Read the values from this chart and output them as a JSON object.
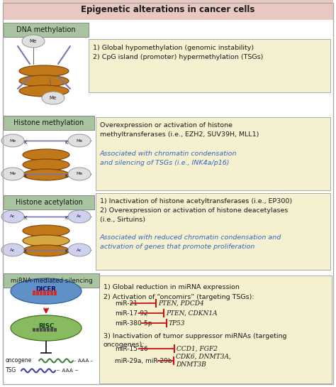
{
  "title": "Epigenetic alterations in cancer cells",
  "title_bg": "#e8c8c0",
  "left_label_bg": "#a8c4a0",
  "right_box_bg": "#f5f0d0",
  "dna_text": "1) Global hypomethylation (genomic instability)\n2) CpG island (promoter) hypermethylation (TSGs)",
  "histone_meth_text1": "Overexpression or activation of histone\nmethyltransferases (i.e., EZH2, SUV39H, MLL1)",
  "histone_meth_text2": "Associated with chromatin condensation\nand silencing of TSGs (i.e., INK4a/p16)",
  "histone_ac_text1": "1) Inactivation of histone acetyltransferases (i.e., EP300)\n2) Overexpression or activation of histone deacetylases\n(i.e., Sirtuins)",
  "histone_ac_text2": "Associated with reduced chromatin condensation and\nactivation of genes that promote proliferation",
  "mirna_text1": "1) Global reduction in miRNA expression",
  "mirna_text2": "2) Activation of “oncomirs” (targeting TSGs):",
  "mirna_text3": "3) Inactivation of tumor suppressor miRNAs (targeting\noncogenes):",
  "oncomir_rows": [
    {
      "mir": "miR-21",
      "targets": "PTEN, PDCD4"
    },
    {
      "mir": "miR-17-92",
      "targets": "PTEN, CDKN1A"
    },
    {
      "mir": "miR-380-5p",
      "targets": "TP53"
    }
  ],
  "suppressor_rows": [
    {
      "mir": "miR-15-16",
      "targets": "CCD1, FGF2"
    },
    {
      "mir": "miR-29a, miR-29b",
      "targets": "CDK6, DNMT3A,\nDNMT3B"
    }
  ],
  "red_color": "#cc1111",
  "blue_italic_color": "#3366bb",
  "dark_text": "#1a1a1a",
  "bg_color": "#ffffff",
  "nuc_color": "#c07818",
  "nuc_edge": "#7a4008",
  "strand_color": "#7878b0",
  "me_bg": "#e0e0e0",
  "ac_bg": "#d0d0f0",
  "dicer_color": "#6090c8",
  "dicer_edge": "#3060a0",
  "risc_color": "#88bb60",
  "risc_edge": "#407020",
  "oncogene_color": "#408040",
  "tsg_color": "#4040a0"
}
